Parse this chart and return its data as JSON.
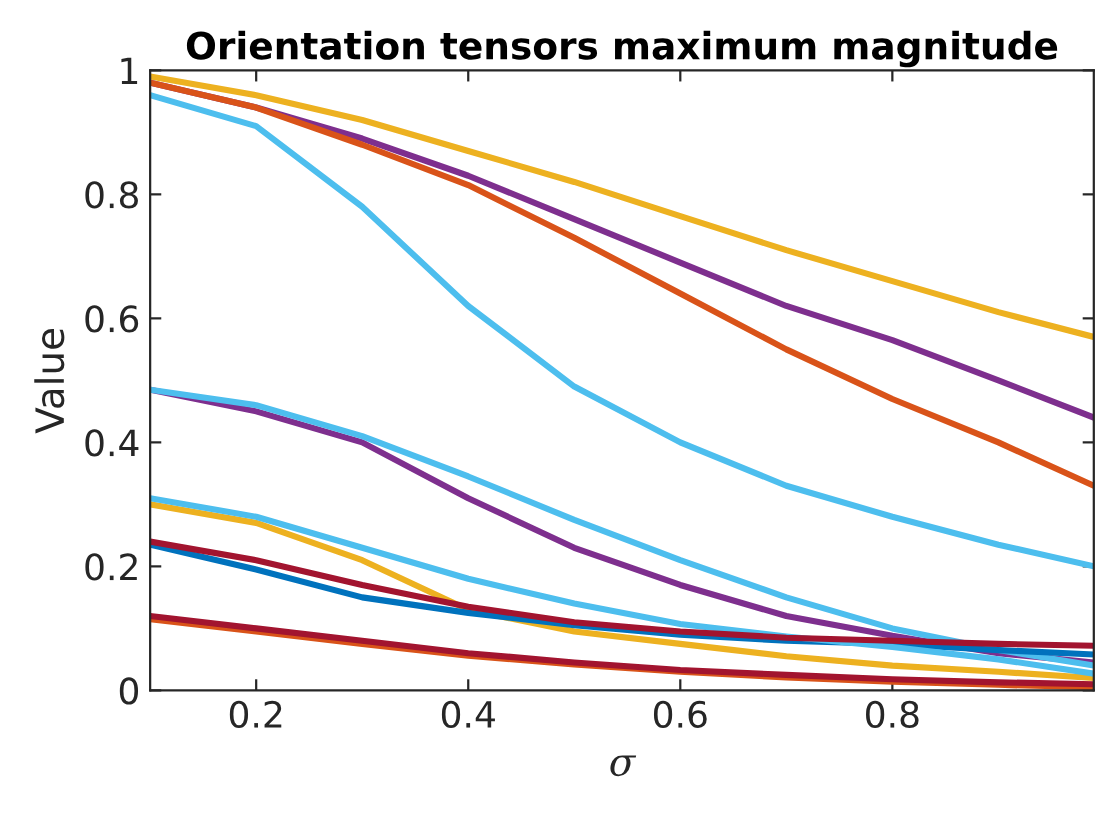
{
  "chart_data": {
    "type": "line",
    "title": "Orientation tensors maximum magnitude",
    "xlabel": "σ",
    "ylabel": "Value",
    "x": [
      0.1,
      0.2,
      0.3,
      0.4,
      0.5,
      0.6,
      0.7,
      0.8,
      0.9,
      0.99
    ],
    "xlim": [
      0.1,
      0.99
    ],
    "xticks": [
      0.2,
      0.4,
      0.6,
      0.8
    ],
    "ylim": [
      0,
      1
    ],
    "yticks": [
      0,
      0.2,
      0.4,
      0.6,
      0.8,
      1
    ],
    "grid": false,
    "legend": false,
    "line_style": "solid",
    "marker": "none",
    "series": [
      {
        "color": "#edb120",
        "values": [
          0.99,
          0.96,
          0.92,
          0.87,
          0.82,
          0.765,
          0.71,
          0.66,
          0.61,
          0.57
        ]
      },
      {
        "color": "#7e2f8e",
        "values": [
          0.98,
          0.94,
          0.89,
          0.83,
          0.76,
          0.69,
          0.62,
          0.565,
          0.5,
          0.44
        ]
      },
      {
        "color": "#d95319",
        "values": [
          0.98,
          0.94,
          0.88,
          0.815,
          0.73,
          0.64,
          0.55,
          0.47,
          0.4,
          0.33
        ]
      },
      {
        "color": "#4dbeee",
        "values": [
          0.96,
          0.91,
          0.78,
          0.62,
          0.49,
          0.4,
          0.33,
          0.28,
          0.235,
          0.2
        ]
      },
      {
        "color": "#7e2f8e",
        "values": [
          0.485,
          0.45,
          0.4,
          0.31,
          0.23,
          0.17,
          0.12,
          0.088,
          0.06,
          0.045
        ]
      },
      {
        "color": "#4dbeee",
        "values": [
          0.485,
          0.46,
          0.41,
          0.345,
          0.275,
          0.21,
          0.15,
          0.1,
          0.065,
          0.04
        ]
      },
      {
        "color": "#edb120",
        "values": [
          0.3,
          0.27,
          0.21,
          0.13,
          0.095,
          0.075,
          0.055,
          0.04,
          0.03,
          0.02
        ]
      },
      {
        "color": "#0072bd",
        "values": [
          0.235,
          0.195,
          0.15,
          0.125,
          0.105,
          0.09,
          0.08,
          0.075,
          0.065,
          0.058
        ]
      },
      {
        "color": "#4dbeee",
        "values": [
          0.31,
          0.28,
          0.23,
          0.18,
          0.14,
          0.107,
          0.087,
          0.07,
          0.05,
          0.027
        ]
      },
      {
        "color": "#a2142f",
        "values": [
          0.24,
          0.21,
          0.17,
          0.135,
          0.11,
          0.095,
          0.085,
          0.08,
          0.075,
          0.072
        ]
      },
      {
        "color": "#d95319",
        "values": [
          0.115,
          0.095,
          0.075,
          0.056,
          0.042,
          0.03,
          0.021,
          0.014,
          0.009,
          0.005
        ]
      },
      {
        "color": "#a2142f",
        "values": [
          0.12,
          0.1,
          0.08,
          0.06,
          0.045,
          0.033,
          0.025,
          0.018,
          0.013,
          0.01
        ]
      }
    ]
  }
}
